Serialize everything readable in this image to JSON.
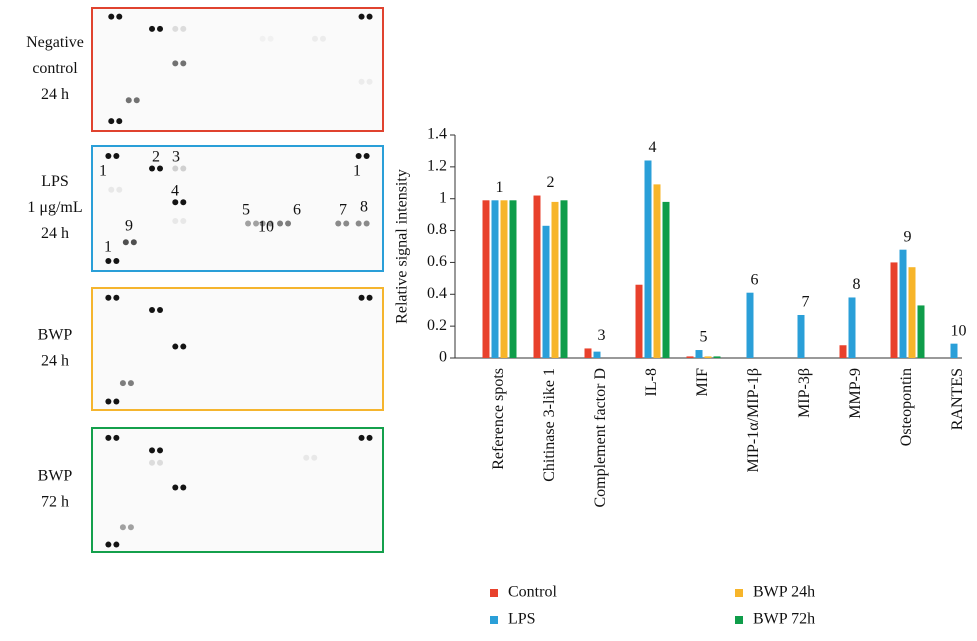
{
  "panels": [
    {
      "label": [
        "Negative",
        "control",
        "24 h"
      ],
      "color": "#e0432f"
    },
    {
      "label": [
        "LPS",
        "1 μg/mL",
        "24 h"
      ],
      "color": "#2a9fd8",
      "annotations": [
        "1",
        "2",
        "3",
        "4",
        "9",
        "1",
        "5",
        "10",
        "6",
        "7",
        "8",
        "1"
      ]
    },
    {
      "label": [
        "BWP",
        "24 h"
      ],
      "color": "#f5b52e"
    },
    {
      "label": [
        "BWP",
        "72 h"
      ],
      "color": "#14a04c"
    }
  ],
  "chart_data": {
    "type": "bar",
    "y_label": "Relative signal intensity",
    "categories": [
      "Reference spots",
      "Chitinase 3-like 1",
      "Complement factor D",
      "IL-8",
      "MIF",
      "MIP-1α/MIP-1β",
      "MIP-3β",
      "MMP-9",
      "Osteopontin",
      "RANTES"
    ],
    "series": [
      {
        "name": "Control",
        "color": "#e8412c",
        "values": [
          0.99,
          1.02,
          0.06,
          0.46,
          0.01,
          0,
          0,
          0.08,
          0.6,
          0
        ]
      },
      {
        "name": "LPS",
        "color": "#2a9fd8",
        "values": [
          0.99,
          0.83,
          0.04,
          1.24,
          0.05,
          0.41,
          0.27,
          0.38,
          0.68,
          0.09
        ]
      },
      {
        "name": "BWP 24h",
        "color": "#f7b52a",
        "values": [
          0.99,
          0.98,
          0,
          1.09,
          0.01,
          0,
          0,
          0,
          0.57,
          0
        ]
      },
      {
        "name": "BWP 72h",
        "color": "#0f9d4a",
        "values": [
          0.99,
          0.99,
          0,
          0.98,
          0.01,
          0,
          0,
          0,
          0.33,
          0
        ]
      }
    ],
    "annotations": [
      "1",
      "2",
      "3",
      "4",
      "5",
      "6",
      "7",
      "8",
      "9",
      "10"
    ],
    "ylim": [
      0,
      1.4
    ],
    "yticks": [
      0,
      0.2,
      0.4,
      0.6,
      0.8,
      1,
      1.2,
      1.4
    ],
    "grid": false,
    "legend": "bottom"
  }
}
